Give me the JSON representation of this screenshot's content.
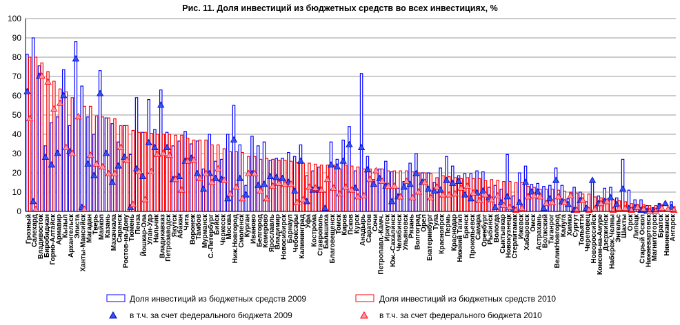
{
  "chart_data": {
    "type": "bar",
    "title": "Рис. 11. Доля инвестиций из бюджетных средств во всех инвестициях, %",
    "xlabel": "",
    "ylabel": "",
    "ylim": [
      0,
      100
    ],
    "yticks": [
      0,
      10,
      20,
      30,
      40,
      50,
      60,
      70,
      80,
      90,
      100
    ],
    "grid": true,
    "legend_position": "bottom",
    "colors": {
      "total2009": "#0000ff",
      "total2010": "#ff0000",
      "fed2009": "#3355ee",
      "fed2010": "#ff99aa"
    },
    "categories": [
      "Грозный",
      "Салехард",
      "Владивосток",
      "Биробиджан",
      "Горно-Алтайск",
      "Армавир",
      "Кызыл",
      "Архангельск",
      "Элиста",
      "Ханты-Мансийск",
      "Магадан",
      "Тверь",
      "Майкоп",
      "Казань",
      "Махачкала",
      "Саранск",
      "Ростов-на-Дону",
      "Тюмень",
      "Пенза",
      "Йошкар-Ола",
      "Улан-Удэ",
      "Нальчик",
      "Владикавказ",
      "Петрозаводск",
      "Якутск",
      "Абакан",
      "Чита",
      "Воронеж",
      "Тамбов",
      "Мурманск",
      "С.-Петербург",
      "Бийск",
      "Черкесск",
      "Москва",
      "Ниж.Новгород",
      "Смоленск",
      "Курган",
      "Иваново",
      "Белгород",
      "Кемерово",
      "Ярославль",
      "Владимир",
      "Новосибирск",
      "Барнаул",
      "Чебоксары",
      "Калининград",
      "Уфа",
      "Кострома",
      "Ставрополь",
      "Балашиха",
      "Благовещенск",
      "Томск",
      "Киров",
      "Псков",
      "Курск",
      "Анадырь",
      "Саратов",
      "Сочи",
      "Петропавл.-Камч.",
      "Иркутск",
      "Юж.-Сахалинск",
      "Челябинск",
      "Ульяновск",
      "Рязань",
      "Волгоград",
      "Орел",
      "Екатеринбург",
      "Тула",
      "Красноярск",
      "Пермь",
      "Краснодар",
      "Нижний Тагил",
      "Брянск",
      "Прокопьевск",
      "Самара",
      "Оренбург",
      "Рыбинск",
      "Вологда",
      "Сыктывкар",
      "Новокузнецк",
      "Стерлитамак",
      "Ижевск",
      "Хабаровск",
      "Омск",
      "Астрахань",
      "Волжский",
      "Таганрог",
      "ВеликНовгород",
      "Калуга",
      "Химки",
      "Сургут",
      "Тольятти",
      "Череповец",
      "Новороссийск",
      "Комсом-на-Амуре",
      "Дзержинск",
      "Набереж.Челны",
      "Энгельс",
      "Шахты",
      "Орск",
      "Липецк",
      "Старый Оскол",
      "Нижневартовск",
      "Магнитогорск",
      "Братск",
      "Нижнекамск",
      "Ангарск"
    ],
    "series": [
      {
        "name": "Доля инвестиций из бюджетных средств 2009",
        "kind": "bar",
        "values": [
          81.5,
          90,
          75.5,
          34,
          46,
          49,
          73.5,
          44.5,
          88,
          65,
          49,
          40,
          73,
          48.5,
          45.5,
          36,
          44.5,
          29.5,
          59,
          41,
          58,
          42.5,
          63,
          41,
          34,
          36.5,
          41.5,
          35,
          36.5,
          22,
          40,
          26,
          27,
          40,
          55,
          34.5,
          13.5,
          39,
          34,
          36,
          26.5,
          27.5,
          27.5,
          30.5,
          28.5,
          34.5,
          18.5,
          21,
          23,
          10,
          36,
          27,
          37,
          44,
          21,
          71.5,
          28.5,
          16.5,
          22,
          26,
          20.5,
          12,
          15.5,
          25,
          30,
          20,
          20,
          15,
          22.5,
          28.5,
          23.5,
          18.5,
          19.5,
          19.5,
          21,
          20.5,
          12.5,
          13.5,
          11.5,
          29.5,
          8,
          20,
          23.5,
          14,
          14.5,
          13,
          13.5,
          22.5,
          13.5,
          6.5,
          12.5,
          10,
          5,
          16,
          8,
          12,
          12.5,
          7,
          27,
          11,
          6,
          6,
          3,
          2,
          4,
          0.5,
          5
        ]
      },
      {
        "name": "Доля инвестиций из бюджетных средств 2010",
        "kind": "bar",
        "values": [
          80,
          80,
          77,
          72.5,
          67.5,
          63.5,
          62,
          59,
          49,
          54.5,
          54.5,
          49.5,
          49,
          48.5,
          48,
          44.5,
          44.5,
          42,
          41,
          41,
          40.5,
          40,
          40,
          40,
          39.5,
          39.5,
          38,
          37,
          37,
          37,
          34.5,
          34.5,
          32.5,
          31,
          31,
          30.5,
          28.5,
          28.5,
          27,
          27.5,
          27,
          26.5,
          26.5,
          26,
          25.5,
          25,
          25,
          24.5,
          24,
          24,
          24,
          22,
          24,
          23.5,
          23,
          22,
          22,
          22,
          22,
          21,
          21,
          21,
          21,
          20.5,
          20,
          20,
          19.5,
          17.5,
          18.5,
          18,
          17.5,
          17,
          17.5,
          17,
          17,
          16,
          16.5,
          16,
          15.5,
          15.5,
          15,
          15,
          13,
          12.5,
          11.5,
          11.5,
          11.5,
          11,
          10.5,
          10,
          9.5,
          9,
          9,
          7.5,
          7,
          6,
          6,
          5.5,
          5,
          4,
          3.5,
          3.5,
          3,
          3,
          3.5,
          1,
          2.5
        ]
      },
      {
        "name": "в т.ч. за счет федерального бюджета 2009",
        "kind": "marker",
        "values": [
          62,
          5,
          70,
          28,
          24,
          30,
          60,
          31,
          79,
          2,
          24.5,
          18.5,
          61,
          30,
          15,
          23.5,
          28,
          2,
          22,
          18,
          35.5,
          33,
          55,
          33,
          16.5,
          18,
          26,
          27.5,
          19.5,
          11.5,
          19.5,
          17,
          16.5,
          6.5,
          37,
          17,
          8.5,
          19.5,
          13.5,
          14,
          18,
          17.5,
          17,
          15,
          10.5,
          26,
          5,
          11,
          11,
          1.5,
          24,
          23,
          26,
          34.5,
          12,
          33,
          21.5,
          14,
          17,
          13,
          5,
          7.5,
          12.5,
          14,
          19.5,
          15,
          11.5,
          10.5,
          11,
          16,
          14.5,
          15.5,
          8.5,
          6.5,
          9.5,
          10.5,
          7,
          2,
          4.5,
          7.5,
          1,
          4.5,
          15,
          10,
          10,
          1.5,
          6.5,
          16,
          5,
          3.5,
          0.5,
          5.5,
          1.5,
          16,
          4,
          5,
          7,
          3.5,
          11.5,
          1.5,
          2,
          0.5,
          0,
          0,
          2.5,
          4,
          2
        ]
      },
      {
        "name": "в т.ч. за счет федерального бюджета 2010",
        "kind": "marker",
        "values": [
          48,
          1,
          70,
          67,
          53,
          56,
          33,
          30,
          49,
          1,
          29,
          24.5,
          23,
          19.5,
          19.5,
          33,
          26.5,
          3.5,
          20.5,
          6,
          20.5,
          29.5,
          30,
          29,
          16.5,
          11,
          26,
          26.5,
          17,
          19.5,
          15,
          22,
          16,
          9,
          12.5,
          6.5,
          19.5,
          19.5,
          10.5,
          6.5,
          13,
          14.5,
          14,
          14,
          4.5,
          6,
          12.5,
          12,
          11,
          16.5,
          12,
          9,
          12.5,
          11,
          7.5,
          8,
          16.5,
          21,
          15.5,
          13,
          13,
          7.5,
          15.5,
          7,
          10,
          15,
          7,
          12.5,
          8.5,
          8.5,
          9,
          12,
          13,
          9.5,
          5.5,
          8.5,
          6,
          8,
          3,
          2,
          0.5,
          1.5,
          7.5,
          8,
          7.5,
          4,
          4.5,
          7.5,
          4.5,
          8,
          0.5,
          5.5,
          0.5,
          1,
          4,
          5,
          0.5,
          1.5,
          1.5,
          0.5,
          2,
          1,
          0,
          0,
          1.5,
          1,
          0.5
        ]
      }
    ]
  }
}
